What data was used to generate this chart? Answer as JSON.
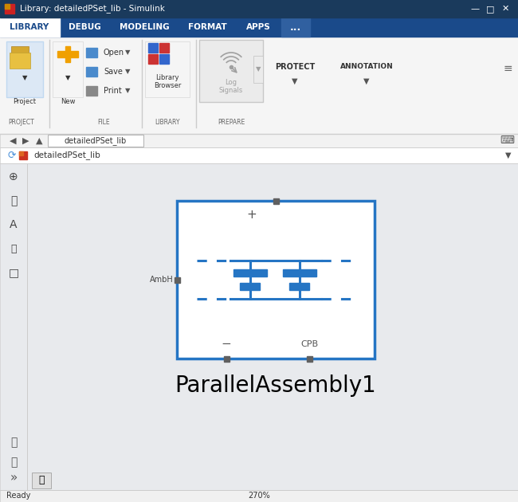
{
  "title_bar": "Library: detailedPSet_lib - Simulink",
  "window_bg": "#f0f0f0",
  "titlebar_bg": "#1a3a5c",
  "ribbon_bg": "#1a4a8a",
  "ribbon_active_bg": "#ffffff",
  "ribbon_active_fg": "#1a4a8a",
  "ribbon_fg": "#ffffff",
  "toolbar_bg": "#f5f5f5",
  "canvas_bg": "#e8eaed",
  "simulink_blue": "#2575c4",
  "port_color": "#606060",
  "block_name": "ParallelAssembly1",
  "lib_path": "detailedPSet_lib",
  "status_text": "Ready",
  "zoom_text": "270%",
  "tab_labels": [
    "LIBRARY",
    "DEBUG",
    "MODELING",
    "FORMAT",
    "APPS",
    "..."
  ],
  "tab_widths": [
    75,
    62,
    88,
    70,
    58,
    36
  ],
  "section_labels": [
    "PROJECT",
    "FILE",
    "LIBRARY",
    "PREPARE"
  ],
  "fig_w": 6.5,
  "fig_h": 6.3,
  "dpi": 100
}
